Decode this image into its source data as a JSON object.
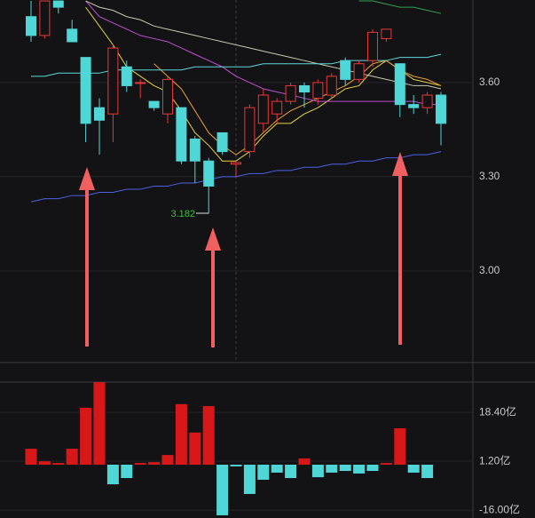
{
  "chart_data": [
    {
      "type": "candlestick",
      "annotation": "3.182",
      "ylim": [
        2.708,
        3.863
      ],
      "yticks": [
        {
          "value": 3.6,
          "label": "3.60"
        },
        {
          "value": 3.3,
          "label": "3.30"
        },
        {
          "value": 3.0,
          "label": "3.00"
        }
      ],
      "grid": true,
      "up_color": "#e83838",
      "down_color": "#4fd6d6",
      "open": [
        3.81,
        3.75,
        3.86,
        3.77,
        3.68,
        3.52,
        3.5,
        3.65,
        3.6,
        3.54,
        3.5,
        3.52,
        3.42,
        3.35,
        3.44,
        3.34,
        3.38,
        3.47,
        3.5,
        3.54,
        3.59,
        3.55,
        3.56,
        3.67,
        3.61,
        3.67,
        3.74,
        3.66,
        3.53,
        3.52,
        3.56
      ],
      "high": [
        3.86,
        3.86,
        3.86,
        3.8,
        3.68,
        3.55,
        3.72,
        3.67,
        3.61,
        3.54,
        3.62,
        3.52,
        3.43,
        3.36,
        3.44,
        3.35,
        3.53,
        3.58,
        3.55,
        3.6,
        3.6,
        3.61,
        3.63,
        3.68,
        3.67,
        3.77,
        3.77,
        3.66,
        3.56,
        3.57,
        3.57
      ],
      "low": [
        3.73,
        3.74,
        3.82,
        3.73,
        3.41,
        3.37,
        3.41,
        3.57,
        3.55,
        3.51,
        3.47,
        3.34,
        3.28,
        3.182,
        3.37,
        3.3,
        3.36,
        3.44,
        3.47,
        3.53,
        3.52,
        3.53,
        3.55,
        3.59,
        3.6,
        3.65,
        3.73,
        3.49,
        3.5,
        3.5,
        3.4
      ],
      "close": [
        3.75,
        3.86,
        3.84,
        3.73,
        3.47,
        3.48,
        3.71,
        3.59,
        3.6,
        3.52,
        3.61,
        3.35,
        3.35,
        3.27,
        3.38,
        3.345,
        3.52,
        3.56,
        3.54,
        3.59,
        3.57,
        3.6,
        3.62,
        3.61,
        3.66,
        3.76,
        3.77,
        3.53,
        3.52,
        3.56,
        3.47
      ],
      "lines": [
        {
          "color": "#e8d040",
          "values": [
            null,
            null,
            null,
            null,
            3.84,
            3.78,
            3.72,
            3.65,
            3.62,
            3.59,
            3.57,
            3.51,
            3.44,
            3.4,
            3.35,
            3.35,
            3.38,
            3.43,
            3.47,
            3.47,
            3.5,
            3.52,
            3.55,
            3.58,
            3.59,
            3.64,
            3.67,
            3.64,
            3.61,
            3.6,
            3.59
          ]
        },
        {
          "color": "#e8a030",
          "values": [
            null,
            null,
            null,
            null,
            null,
            null,
            null,
            null,
            null,
            3.66,
            3.62,
            3.58,
            3.51,
            3.44,
            3.4,
            3.37,
            3.4,
            3.44,
            3.48,
            3.51,
            3.53,
            3.55,
            3.57,
            3.59,
            3.62,
            3.66,
            3.67,
            3.64,
            3.62,
            3.61,
            3.59
          ]
        },
        {
          "color": "#c050d0",
          "values": [
            null,
            null,
            null,
            null,
            3.86,
            3.81,
            3.79,
            3.77,
            3.75,
            3.74,
            3.73,
            3.71,
            3.69,
            3.67,
            3.65,
            3.62,
            3.6,
            3.58,
            3.57,
            3.56,
            3.55,
            3.54,
            3.54,
            3.54,
            3.54,
            3.54,
            3.54,
            3.54,
            3.54,
            3.53,
            3.53
          ]
        },
        {
          "color": "#c8c8b0",
          "values": [
            null,
            null,
            null,
            null,
            3.86,
            3.84,
            3.83,
            3.81,
            3.8,
            3.78,
            3.77,
            3.76,
            3.75,
            3.74,
            3.73,
            3.72,
            3.71,
            3.7,
            3.69,
            3.68,
            3.67,
            3.66,
            3.65,
            3.64,
            3.63,
            3.62,
            3.61,
            3.6,
            3.59,
            3.59,
            3.58
          ]
        },
        {
          "color": "#30a050",
          "values": [
            null,
            null,
            null,
            null,
            null,
            null,
            null,
            null,
            null,
            null,
            null,
            null,
            null,
            null,
            null,
            null,
            null,
            null,
            null,
            null,
            null,
            null,
            null,
            null,
            3.86,
            3.86,
            3.85,
            3.84,
            3.84,
            3.83,
            3.82
          ]
        },
        {
          "color": "#60d8d8",
          "values": [
            3.62,
            3.62,
            3.63,
            3.63,
            3.63,
            3.63,
            3.64,
            3.64,
            3.64,
            3.64,
            3.64,
            3.64,
            3.65,
            3.65,
            3.65,
            3.65,
            3.65,
            3.66,
            3.66,
            3.66,
            3.66,
            3.66,
            3.66,
            3.67,
            3.67,
            3.67,
            3.67,
            3.68,
            3.68,
            3.68,
            3.69
          ]
        },
        {
          "color": "#5060e0",
          "values": [
            3.22,
            3.23,
            3.23,
            3.24,
            3.24,
            3.25,
            3.25,
            3.26,
            3.26,
            3.27,
            3.27,
            3.28,
            3.28,
            3.29,
            3.3,
            3.3,
            3.31,
            3.31,
            3.32,
            3.32,
            3.33,
            3.33,
            3.34,
            3.34,
            3.35,
            3.35,
            3.36,
            3.36,
            3.37,
            3.37,
            3.38
          ]
        }
      ]
    },
    {
      "type": "bar",
      "ylim": [
        -18.75,
        29.06
      ],
      "yticks": [
        {
          "value": 18.4,
          "label": "18.40亿"
        },
        {
          "value": 1.2,
          "label": "1.20亿"
        },
        {
          "value": -16,
          "label": "-16.00亿"
        }
      ],
      "pos_color": "#d81818",
      "neg_color": "#4fd6d6",
      "values": [
        5.6,
        1.2,
        0.6,
        5.6,
        20.0,
        29.0,
        -6.9,
        -4.7,
        0.6,
        0.9,
        3.4,
        21.3,
        11.3,
        20.6,
        -17.8,
        -0.6,
        -10.3,
        -5.3,
        -2.8,
        -4.7,
        2.2,
        -4.4,
        -2.8,
        -2.2,
        -3.1,
        -2.2,
        0.6,
        12.8,
        -2.8,
        -4.7,
        null
      ]
    }
  ]
}
